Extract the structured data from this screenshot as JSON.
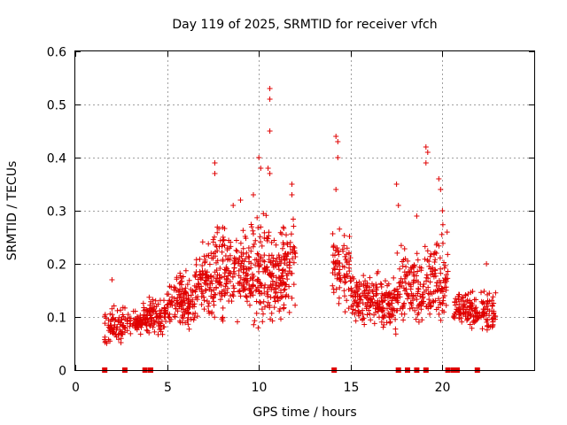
{
  "chart_data": {
    "type": "scatter",
    "title": "Day 119 of 2025, SRMTID for receiver vfch",
    "xlabel": "GPS time / hours",
    "ylabel": "SRMTID / TECUs",
    "xlim": [
      0,
      25
    ],
    "ylim": [
      0,
      0.6
    ],
    "x_ticks": [
      0,
      5,
      10,
      15,
      20
    ],
    "x_tick_labels": [
      "0",
      "5",
      "10",
      "15",
      "20"
    ],
    "y_ticks": [
      0,
      0.1,
      0.2,
      0.3,
      0.4,
      0.5,
      0.6
    ],
    "y_tick_labels": [
      "0",
      "0.1",
      "0.2",
      "0.3",
      "0.4",
      "0.5",
      "0.6"
    ],
    "grid": true,
    "marker": "+",
    "series": [
      {
        "name": "SRMTID",
        "color": "#e00000",
        "envelope": [
          {
            "x0": 1.6,
            "x1": 2.6,
            "ymin": 0.04,
            "ymax": 0.13,
            "n": 70
          },
          {
            "x0": 2.6,
            "x1": 3.6,
            "ymin": 0.06,
            "ymax": 0.12,
            "n": 60
          },
          {
            "x0": 3.6,
            "x1": 5.0,
            "ymin": 0.06,
            "ymax": 0.15,
            "n": 110
          },
          {
            "x0": 5.0,
            "x1": 6.5,
            "ymin": 0.07,
            "ymax": 0.2,
            "n": 130
          },
          {
            "x0": 6.5,
            "x1": 7.5,
            "ymin": 0.08,
            "ymax": 0.27,
            "n": 90
          },
          {
            "x0": 7.5,
            "x1": 8.5,
            "ymin": 0.08,
            "ymax": 0.32,
            "n": 100
          },
          {
            "x0": 8.5,
            "x1": 9.5,
            "ymin": 0.08,
            "ymax": 0.3,
            "n": 90
          },
          {
            "x0": 9.5,
            "x1": 10.5,
            "ymin": 0.06,
            "ymax": 0.33,
            "n": 100
          },
          {
            "x0": 10.5,
            "x1": 11.2,
            "ymin": 0.07,
            "ymax": 0.3,
            "n": 80
          },
          {
            "x0": 11.2,
            "x1": 12.0,
            "ymin": 0.1,
            "ymax": 0.3,
            "n": 80
          },
          {
            "x0": 14.0,
            "x1": 15.0,
            "ymin": 0.1,
            "ymax": 0.3,
            "n": 80
          },
          {
            "x0": 15.0,
            "x1": 16.5,
            "ymin": 0.08,
            "ymax": 0.2,
            "n": 130
          },
          {
            "x0": 16.5,
            "x1": 17.5,
            "ymin": 0.06,
            "ymax": 0.2,
            "n": 90
          },
          {
            "x0": 17.5,
            "x1": 18.5,
            "ymin": 0.08,
            "ymax": 0.25,
            "n": 80
          },
          {
            "x0": 18.5,
            "x1": 19.5,
            "ymin": 0.07,
            "ymax": 0.25,
            "n": 80
          },
          {
            "x0": 19.5,
            "x1": 20.3,
            "ymin": 0.06,
            "ymax": 0.3,
            "n": 70
          },
          {
            "x0": 20.6,
            "x1": 21.6,
            "ymin": 0.08,
            "ymax": 0.16,
            "n": 80
          },
          {
            "x0": 21.6,
            "x1": 22.9,
            "ymin": 0.06,
            "ymax": 0.17,
            "n": 90
          }
        ],
        "highlights": [
          [
            2.0,
            0.17
          ],
          [
            7.6,
            0.39
          ],
          [
            7.6,
            0.37
          ],
          [
            8.6,
            0.31
          ],
          [
            9.0,
            0.32
          ],
          [
            9.7,
            0.33
          ],
          [
            10.0,
            0.4
          ],
          [
            10.1,
            0.38
          ],
          [
            10.6,
            0.53
          ],
          [
            10.6,
            0.51
          ],
          [
            10.6,
            0.45
          ],
          [
            10.5,
            0.38
          ],
          [
            10.6,
            0.37
          ],
          [
            11.8,
            0.35
          ],
          [
            11.8,
            0.33
          ],
          [
            14.2,
            0.44
          ],
          [
            14.3,
            0.43
          ],
          [
            14.3,
            0.4
          ],
          [
            14.2,
            0.34
          ],
          [
            17.5,
            0.35
          ],
          [
            17.6,
            0.31
          ],
          [
            18.6,
            0.29
          ],
          [
            19.1,
            0.42
          ],
          [
            19.2,
            0.41
          ],
          [
            19.1,
            0.39
          ],
          [
            19.8,
            0.36
          ],
          [
            19.9,
            0.34
          ],
          [
            20.0,
            0.3
          ],
          [
            22.4,
            0.2
          ]
        ],
        "zero_markers": [
          1.6,
          2.7,
          3.8,
          4.1,
          14.1,
          17.6,
          18.1,
          18.6,
          19.1,
          20.3,
          20.6,
          20.8,
          21.9
        ]
      }
    ]
  }
}
